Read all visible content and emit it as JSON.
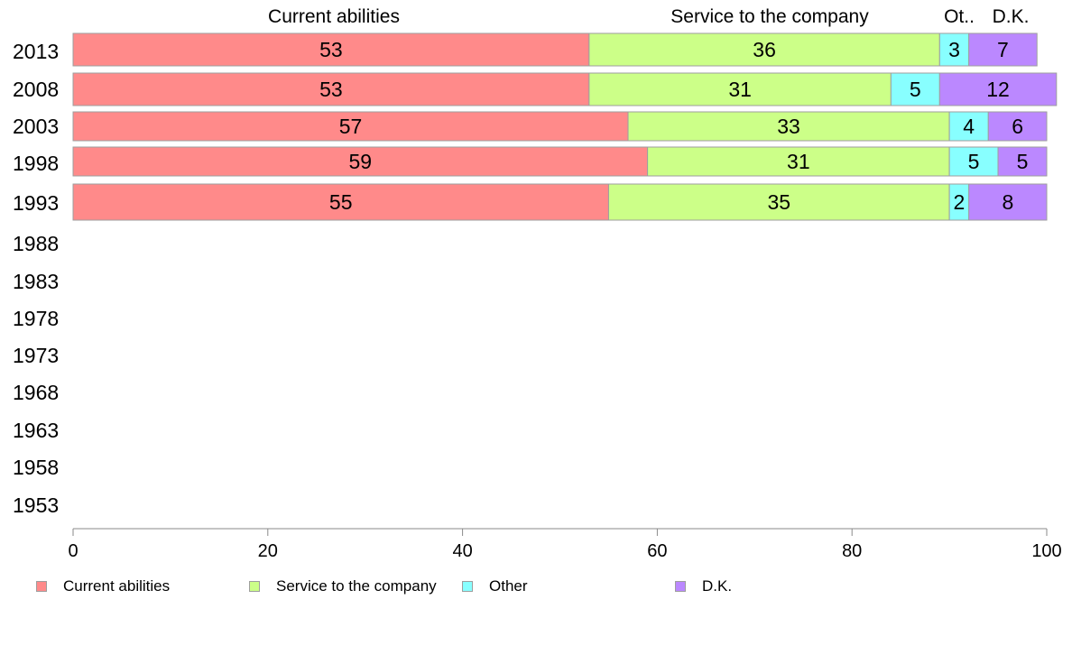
{
  "chart_data": {
    "type": "bar",
    "orientation": "horizontal",
    "stacked": true,
    "title": "",
    "xlabel": "",
    "ylabel": "",
    "xlim": [
      0,
      100
    ],
    "x_ticks": [
      "0",
      "20",
      "40",
      "60",
      "80",
      "100"
    ],
    "categories": [
      "2013",
      "2008",
      "2003",
      "1998",
      "1993",
      "1988",
      "1983",
      "1978",
      "1973",
      "1968",
      "1963",
      "1958",
      "1953"
    ],
    "series": [
      {
        "name": "Current abilities",
        "color": "#ff8a8a",
        "values": [
          53,
          53,
          57,
          59,
          55,
          null,
          null,
          null,
          null,
          null,
          null,
          null,
          null
        ]
      },
      {
        "name": "Service to the company",
        "color": "#ccff88",
        "values": [
          36,
          31,
          33,
          31,
          35,
          null,
          null,
          null,
          null,
          null,
          null,
          null,
          null
        ]
      },
      {
        "name": "Other",
        "color": "#88ffff",
        "values": [
          3,
          5,
          4,
          5,
          2,
          null,
          null,
          null,
          null,
          null,
          null,
          null,
          null
        ]
      },
      {
        "name": "D.K.",
        "color": "#bb88ff",
        "values": [
          7,
          12,
          6,
          5,
          8,
          null,
          null,
          null,
          null,
          null,
          null,
          null,
          null
        ]
      }
    ],
    "top_labels": [
      "Current abilities",
      "Service to the company",
      "Ot..",
      "D.K."
    ],
    "legend_position": "bottom",
    "grid": false
  }
}
